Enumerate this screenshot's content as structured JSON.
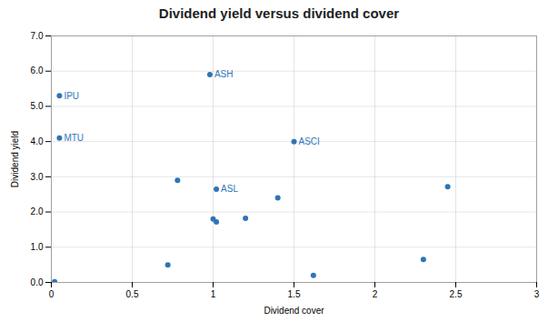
{
  "chart_data": {
    "type": "scatter",
    "title": "Dividend yield versus dividend cover",
    "xlabel": "Dividend cover",
    "ylabel": "Dividend yield",
    "x": [
      0.02,
      0.05,
      0.05,
      0.72,
      0.78,
      0.98,
      1.0,
      1.02,
      1.02,
      1.2,
      1.4,
      1.5,
      1.62,
      2.3,
      2.45
    ],
    "values": [
      0.02,
      5.3,
      4.1,
      0.5,
      2.9,
      5.9,
      1.8,
      1.72,
      2.65,
      1.82,
      2.4,
      4.0,
      0.2,
      0.65,
      2.72
    ],
    "labels": [
      null,
      "IPU",
      "MTU",
      null,
      null,
      "ASH",
      null,
      null,
      "ASL",
      null,
      null,
      "ASCI",
      null,
      null,
      null
    ],
    "color": "#2E75B6",
    "xlim": [
      0,
      3
    ],
    "ylim": [
      0,
      7.0
    ],
    "xticks": [
      0,
      0.5,
      1,
      1.5,
      2,
      2.5,
      3
    ],
    "yticks": [
      {
        "value": 0,
        "label": "0.0"
      },
      {
        "value": 1,
        "label": "1.0"
      },
      {
        "value": 2,
        "label": "2.0"
      },
      {
        "value": 3,
        "label": "3.0"
      },
      {
        "value": 4,
        "label": "4.0"
      },
      {
        "value": 5,
        "label": "5.0"
      },
      {
        "value": 6,
        "label": "6.0"
      },
      {
        "value": 7,
        "label": "7.0"
      }
    ],
    "grid": true
  }
}
